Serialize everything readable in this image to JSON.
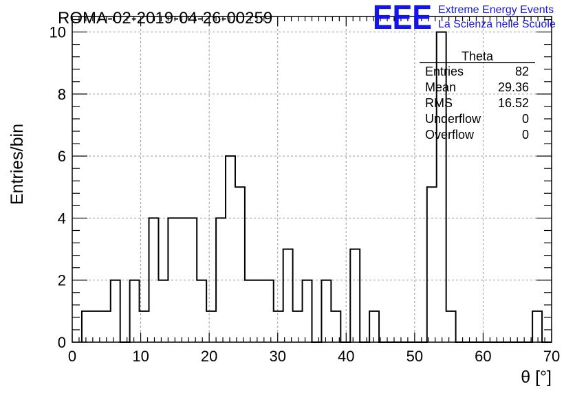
{
  "title": "ROMA-02-2019-04-26-00259",
  "logo": {
    "mark": "EEE",
    "line1": "Extreme Energy Events",
    "line2": "La Scienza nelle Scuole",
    "color": "#1414e6"
  },
  "stats": {
    "name": "Theta",
    "rows": [
      {
        "label": "Entries",
        "value": "82"
      },
      {
        "label": "Mean",
        "value": "29.36"
      },
      {
        "label": "RMS",
        "value": "16.52"
      },
      {
        "label": "Underflow",
        "value": "0"
      },
      {
        "label": "Overflow",
        "value": "0"
      }
    ]
  },
  "chart_data": {
    "type": "bar",
    "xlabel": "θ [°]",
    "ylabel": "Entries/bin",
    "xlim": [
      0,
      70
    ],
    "ylim": [
      0,
      10.5
    ],
    "xticks": [
      0,
      10,
      20,
      30,
      40,
      50,
      60,
      70
    ],
    "xtick_labels": [
      "0",
      "10",
      "20",
      "30",
      "40",
      "50",
      "60",
      "70"
    ],
    "yticks": [
      0,
      2,
      4,
      6,
      8,
      10
    ],
    "ytick_labels": [
      "0",
      "2",
      "4",
      "6",
      "8",
      "10"
    ],
    "grid": true,
    "bin_width": 1.4,
    "bin_start": 1.4,
    "counts": [
      1,
      1,
      1,
      2,
      0,
      2,
      1,
      4,
      2,
      4,
      4,
      4,
      2,
      1,
      4,
      6,
      5,
      2,
      2,
      2,
      1,
      3,
      1,
      2,
      0,
      2,
      1,
      0,
      3,
      0,
      1,
      0,
      0,
      0,
      0,
      0,
      5,
      10,
      1,
      0,
      0,
      0,
      0,
      0,
      0,
      0,
      0,
      1,
      0
    ]
  }
}
